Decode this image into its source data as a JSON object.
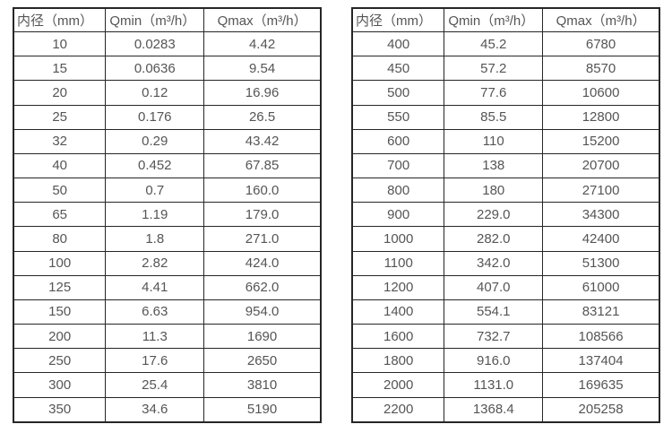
{
  "page": {
    "background_color": "#ffffff",
    "text_color": "#555555",
    "border_color": "#262626"
  },
  "tables": [
    {
      "name": "flow-table-small-diameters",
      "headers": [
        "内径（mm）",
        "Qmin（m³/h）",
        "Qmax（m³/h）"
      ],
      "rows": [
        [
          "10",
          "0.0283",
          "4.42"
        ],
        [
          "15",
          "0.0636",
          "9.54"
        ],
        [
          "20",
          "0.12",
          "16.96"
        ],
        [
          "25",
          "0.176",
          "26.5"
        ],
        [
          "32",
          "0.29",
          "43.42"
        ],
        [
          "40",
          "0.452",
          "67.85"
        ],
        [
          "50",
          "0.7",
          "160.0"
        ],
        [
          "65",
          "1.19",
          "179.0"
        ],
        [
          "80",
          "1.8",
          "271.0"
        ],
        [
          "100",
          "2.82",
          "424.0"
        ],
        [
          "125",
          "4.41",
          "662.0"
        ],
        [
          "150",
          "6.63",
          "954.0"
        ],
        [
          "200",
          "11.3",
          "1690"
        ],
        [
          "250",
          "17.6",
          "2650"
        ],
        [
          "300",
          "25.4",
          "3810"
        ],
        [
          "350",
          "34.6",
          "5190"
        ]
      ]
    },
    {
      "name": "flow-table-large-diameters",
      "headers": [
        "内径（mm）",
        "Qmin（m³/h）",
        "Qmax（m³/h）"
      ],
      "rows": [
        [
          "400",
          "45.2",
          "6780"
        ],
        [
          "450",
          "57.2",
          "8570"
        ],
        [
          "500",
          "77.6",
          "10600"
        ],
        [
          "550",
          "85.5",
          "12800"
        ],
        [
          "600",
          "110",
          "15200"
        ],
        [
          "700",
          "138",
          "20700"
        ],
        [
          "800",
          "180",
          "27100"
        ],
        [
          "900",
          "229.0",
          "34300"
        ],
        [
          "1000",
          "282.0",
          "42400"
        ],
        [
          "1100",
          "342.0",
          "51300"
        ],
        [
          "1200",
          "407.0",
          "61000"
        ],
        [
          "1400",
          "554.1",
          "83121"
        ],
        [
          "1600",
          "732.7",
          "108566"
        ],
        [
          "1800",
          "916.0",
          "137404"
        ],
        [
          "2000",
          "1131.0",
          "169635"
        ],
        [
          "2200",
          "1368.4",
          "205258"
        ]
      ]
    }
  ]
}
